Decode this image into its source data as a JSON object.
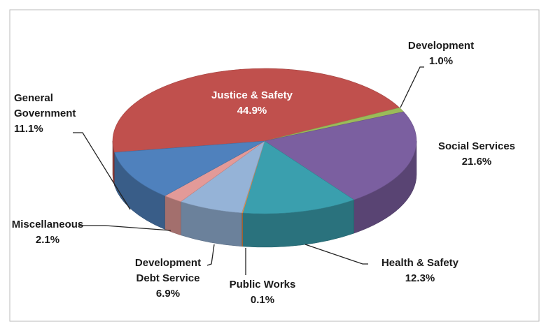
{
  "chart_data": {
    "type": "pie",
    "categories": [
      "Justice & Safety",
      "Development",
      "Social Services",
      "Health & Safety",
      "Public Works",
      "Development Debt Service",
      "Miscellaneous",
      "General Government"
    ],
    "values": [
      44.9,
      1.0,
      21.6,
      12.3,
      0.1,
      6.9,
      2.1,
      11.1
    ],
    "value_labels": [
      "44.9%",
      "1.0%",
      "21.6%",
      "12.3%",
      "0.1%",
      "6.9%",
      "2.1%",
      "11.1%"
    ],
    "colors": [
      "#c0504d",
      "#9bbb59",
      "#7b5fa0",
      "#3a9fae",
      "#f79646",
      "#95b3d7",
      "#e39a98",
      "#4f81bd"
    ]
  }
}
